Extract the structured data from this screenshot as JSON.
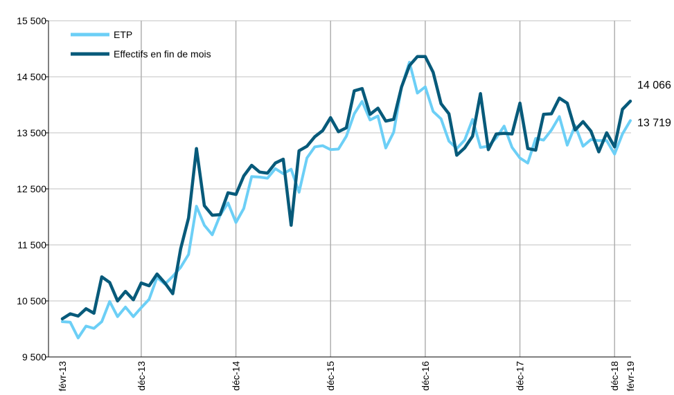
{
  "chart_data": {
    "type": "line",
    "title": "",
    "xlabel": "",
    "ylabel": "",
    "ylim": [
      9500,
      15500
    ],
    "yticks": [
      9500,
      10500,
      11500,
      12500,
      13500,
      14500,
      15500
    ],
    "ytick_labels": [
      "9 500",
      "10 500",
      "11 500",
      "12 500",
      "13 500",
      "14 500",
      "15 500"
    ],
    "xtick_labels": [
      {
        "index": 0,
        "label": "févr-13"
      },
      {
        "index": 10,
        "label": "déc-13"
      },
      {
        "index": 22,
        "label": "déc-14"
      },
      {
        "index": 34,
        "label": "déc-15"
      },
      {
        "index": 46,
        "label": "déc-16"
      },
      {
        "index": 58,
        "label": "déc-17"
      },
      {
        "index": 70,
        "label": "déc-18"
      },
      {
        "index": 72,
        "label": "févr-19"
      }
    ],
    "grid": {
      "x": true,
      "y": true
    },
    "legend": "top-left",
    "series": [
      {
        "name": "ETP",
        "color": "#6ccff6",
        "end_label": "13 719",
        "values": [
          10130,
          10120,
          9840,
          10050,
          10010,
          10130,
          10490,
          10220,
          10390,
          10220,
          10380,
          10530,
          10920,
          10800,
          10940,
          11100,
          11330,
          12190,
          11850,
          11680,
          12030,
          12250,
          11900,
          12150,
          12720,
          12710,
          12690,
          12860,
          12770,
          12850,
          12440,
          13050,
          13250,
          13270,
          13200,
          13210,
          13440,
          13840,
          14060,
          13730,
          13800,
          13230,
          13510,
          14320,
          14760,
          14210,
          14320,
          13880,
          13750,
          13350,
          13220,
          13370,
          13740,
          13240,
          13260,
          13410,
          13620,
          13240,
          13050,
          12960,
          13400,
          13370,
          13550,
          13790,
          13280,
          13630,
          13260,
          13380,
          13360,
          13360,
          13120,
          13480,
          13719
        ]
      },
      {
        "name": "Effectifs en fin de mois",
        "color": "#075a7a",
        "end_label": "14 066",
        "values": [
          10180,
          10270,
          10230,
          10360,
          10280,
          10930,
          10830,
          10500,
          10670,
          10520,
          10820,
          10770,
          10980,
          10820,
          10630,
          11430,
          11980,
          13220,
          12200,
          12030,
          12040,
          12430,
          12400,
          12730,
          12920,
          12800,
          12780,
          12960,
          13030,
          11850,
          13180,
          13260,
          13430,
          13540,
          13770,
          13520,
          13590,
          14250,
          14290,
          13830,
          13940,
          13710,
          13740,
          14320,
          14700,
          14860,
          14860,
          14580,
          14020,
          13840,
          13100,
          13230,
          13440,
          14200,
          13200,
          13480,
          13490,
          13480,
          14030,
          13220,
          13190,
          13830,
          13840,
          14120,
          14030,
          13550,
          13700,
          13530,
          13160,
          13500,
          13250,
          13920,
          14066
        ]
      }
    ]
  }
}
